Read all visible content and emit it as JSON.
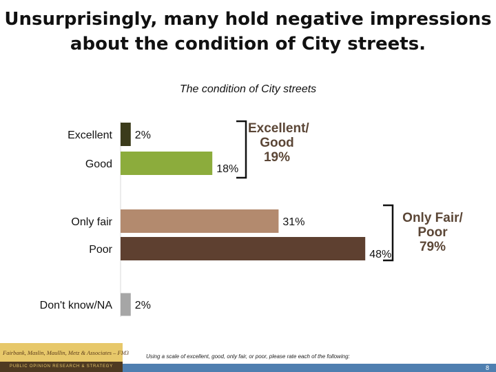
{
  "title": {
    "line1": "Unsurprisingly, many hold negative impressions",
    "line2": "about the condition of City streets."
  },
  "chart_data": {
    "type": "bar",
    "orientation": "horizontal",
    "title": "The condition of City streets",
    "categories": [
      "Excellent",
      "Good",
      "Only fair",
      "Poor",
      "Don't know/NA"
    ],
    "values": [
      2,
      18,
      31,
      48,
      2
    ],
    "value_labels": [
      "2%",
      "18%",
      "31%",
      "48%",
      "2%"
    ],
    "colors": [
      "#3b3b1b",
      "#8cac3c",
      "#b38a6e",
      "#5e4030",
      "#a6a6a6"
    ],
    "xlabel": "",
    "ylabel": "",
    "grid": false,
    "legend": "none"
  },
  "summaries": [
    {
      "line1": "Excellent/",
      "line2": "Good",
      "line3": "19%"
    },
    {
      "line1": "Only Fair/",
      "line2": "Poor",
      "line3": "79%"
    }
  ],
  "footnote": "Using a scale of excellent, good, only fair, or poor, please rate each of the following:",
  "logo": {
    "top": "Fairbank, Maslin, Maullin, Metz & Associates – FM3",
    "bottom": "PUBLIC OPINION RESEARCH & STRATEGY"
  },
  "page_number": "8"
}
